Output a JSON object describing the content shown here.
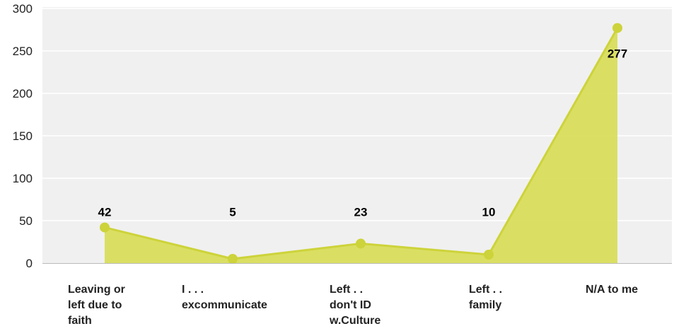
{
  "chart_data": {
    "type": "area",
    "categories": [
      [
        "Leaving or",
        "left due to",
        "faith"
      ],
      [
        "I . . .",
        "excommunicate"
      ],
      [
        "Left . .",
        "don't ID",
        "w.Culture"
      ],
      [
        "Left . .",
        "family"
      ],
      [
        "N/A to me"
      ]
    ],
    "values": [
      42,
      5,
      23,
      10,
      277
    ],
    "data_labels": [
      "42",
      "5",
      "23",
      "10",
      "277"
    ],
    "y_ticks": [
      "0",
      "50",
      "100",
      "150",
      "200",
      "250",
      "300"
    ],
    "ylim": [
      0,
      300
    ],
    "grid": true,
    "colors": {
      "fill": "#d6dc4e",
      "line": "#cdd33a",
      "marker": "#cdd33a",
      "plot_background": "#f0f0f0",
      "gridline": "#ffffff"
    }
  }
}
